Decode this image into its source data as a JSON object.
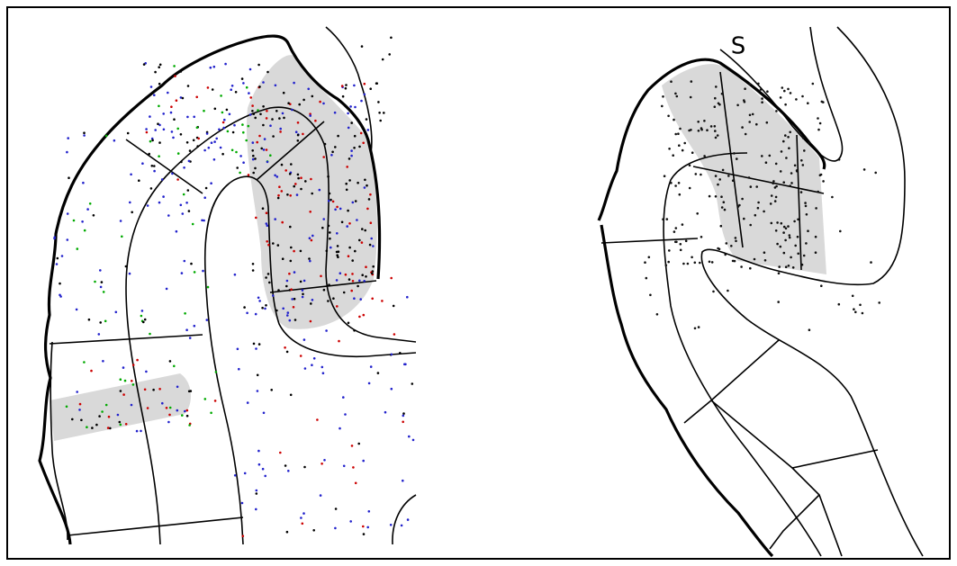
{
  "right_panel": {
    "label": "S"
  }
}
